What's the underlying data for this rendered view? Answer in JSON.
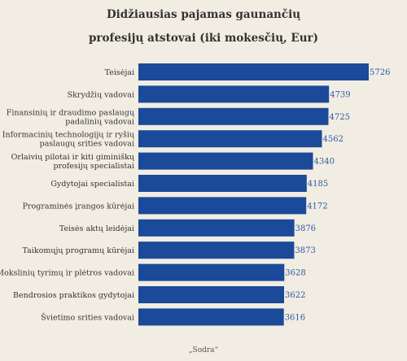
{
  "title_line1": "Didžiausias pajamas gaunančių",
  "title_line2": "profesijų atstovai (iki mokesčių, Eur)",
  "source": "„Sodra“",
  "colors": {
    "bar": "#1a4a99",
    "label_value": "#2a5aa8",
    "background": "#f2ede3"
  },
  "chart_data": {
    "type": "bar",
    "orientation": "horizontal",
    "categories": [
      [
        "Teisėjai"
      ],
      [
        "Skrydžių vadovai"
      ],
      [
        "Finansinių ir draudimo paslaugų",
        "padalinių vadovai"
      ],
      [
        "Informacinių technologijų ir ryšių",
        "paslaugų srities vadovai"
      ],
      [
        "Orlaivių pilotai ir kiti giminiškų",
        "profesijų specialistai"
      ],
      [
        "Gydytojai specialistai"
      ],
      [
        "Programinės įrangos kūrėjai"
      ],
      [
        "Teisės aktų leidėjai"
      ],
      [
        "Taikomųjų programų kūrėjai"
      ],
      [
        "Mokslinių tyrimų ir plėtros vadovai"
      ],
      [
        "Bendrosios praktikos gydytojai"
      ],
      [
        "Švietimo srities vadovai"
      ]
    ],
    "values": [
      5726,
      4739,
      4725,
      4562,
      4340,
      4185,
      4172,
      3876,
      3873,
      3628,
      3622,
      3616
    ],
    "xlim": [
      0,
      5726
    ],
    "grid": false,
    "legend": false
  }
}
